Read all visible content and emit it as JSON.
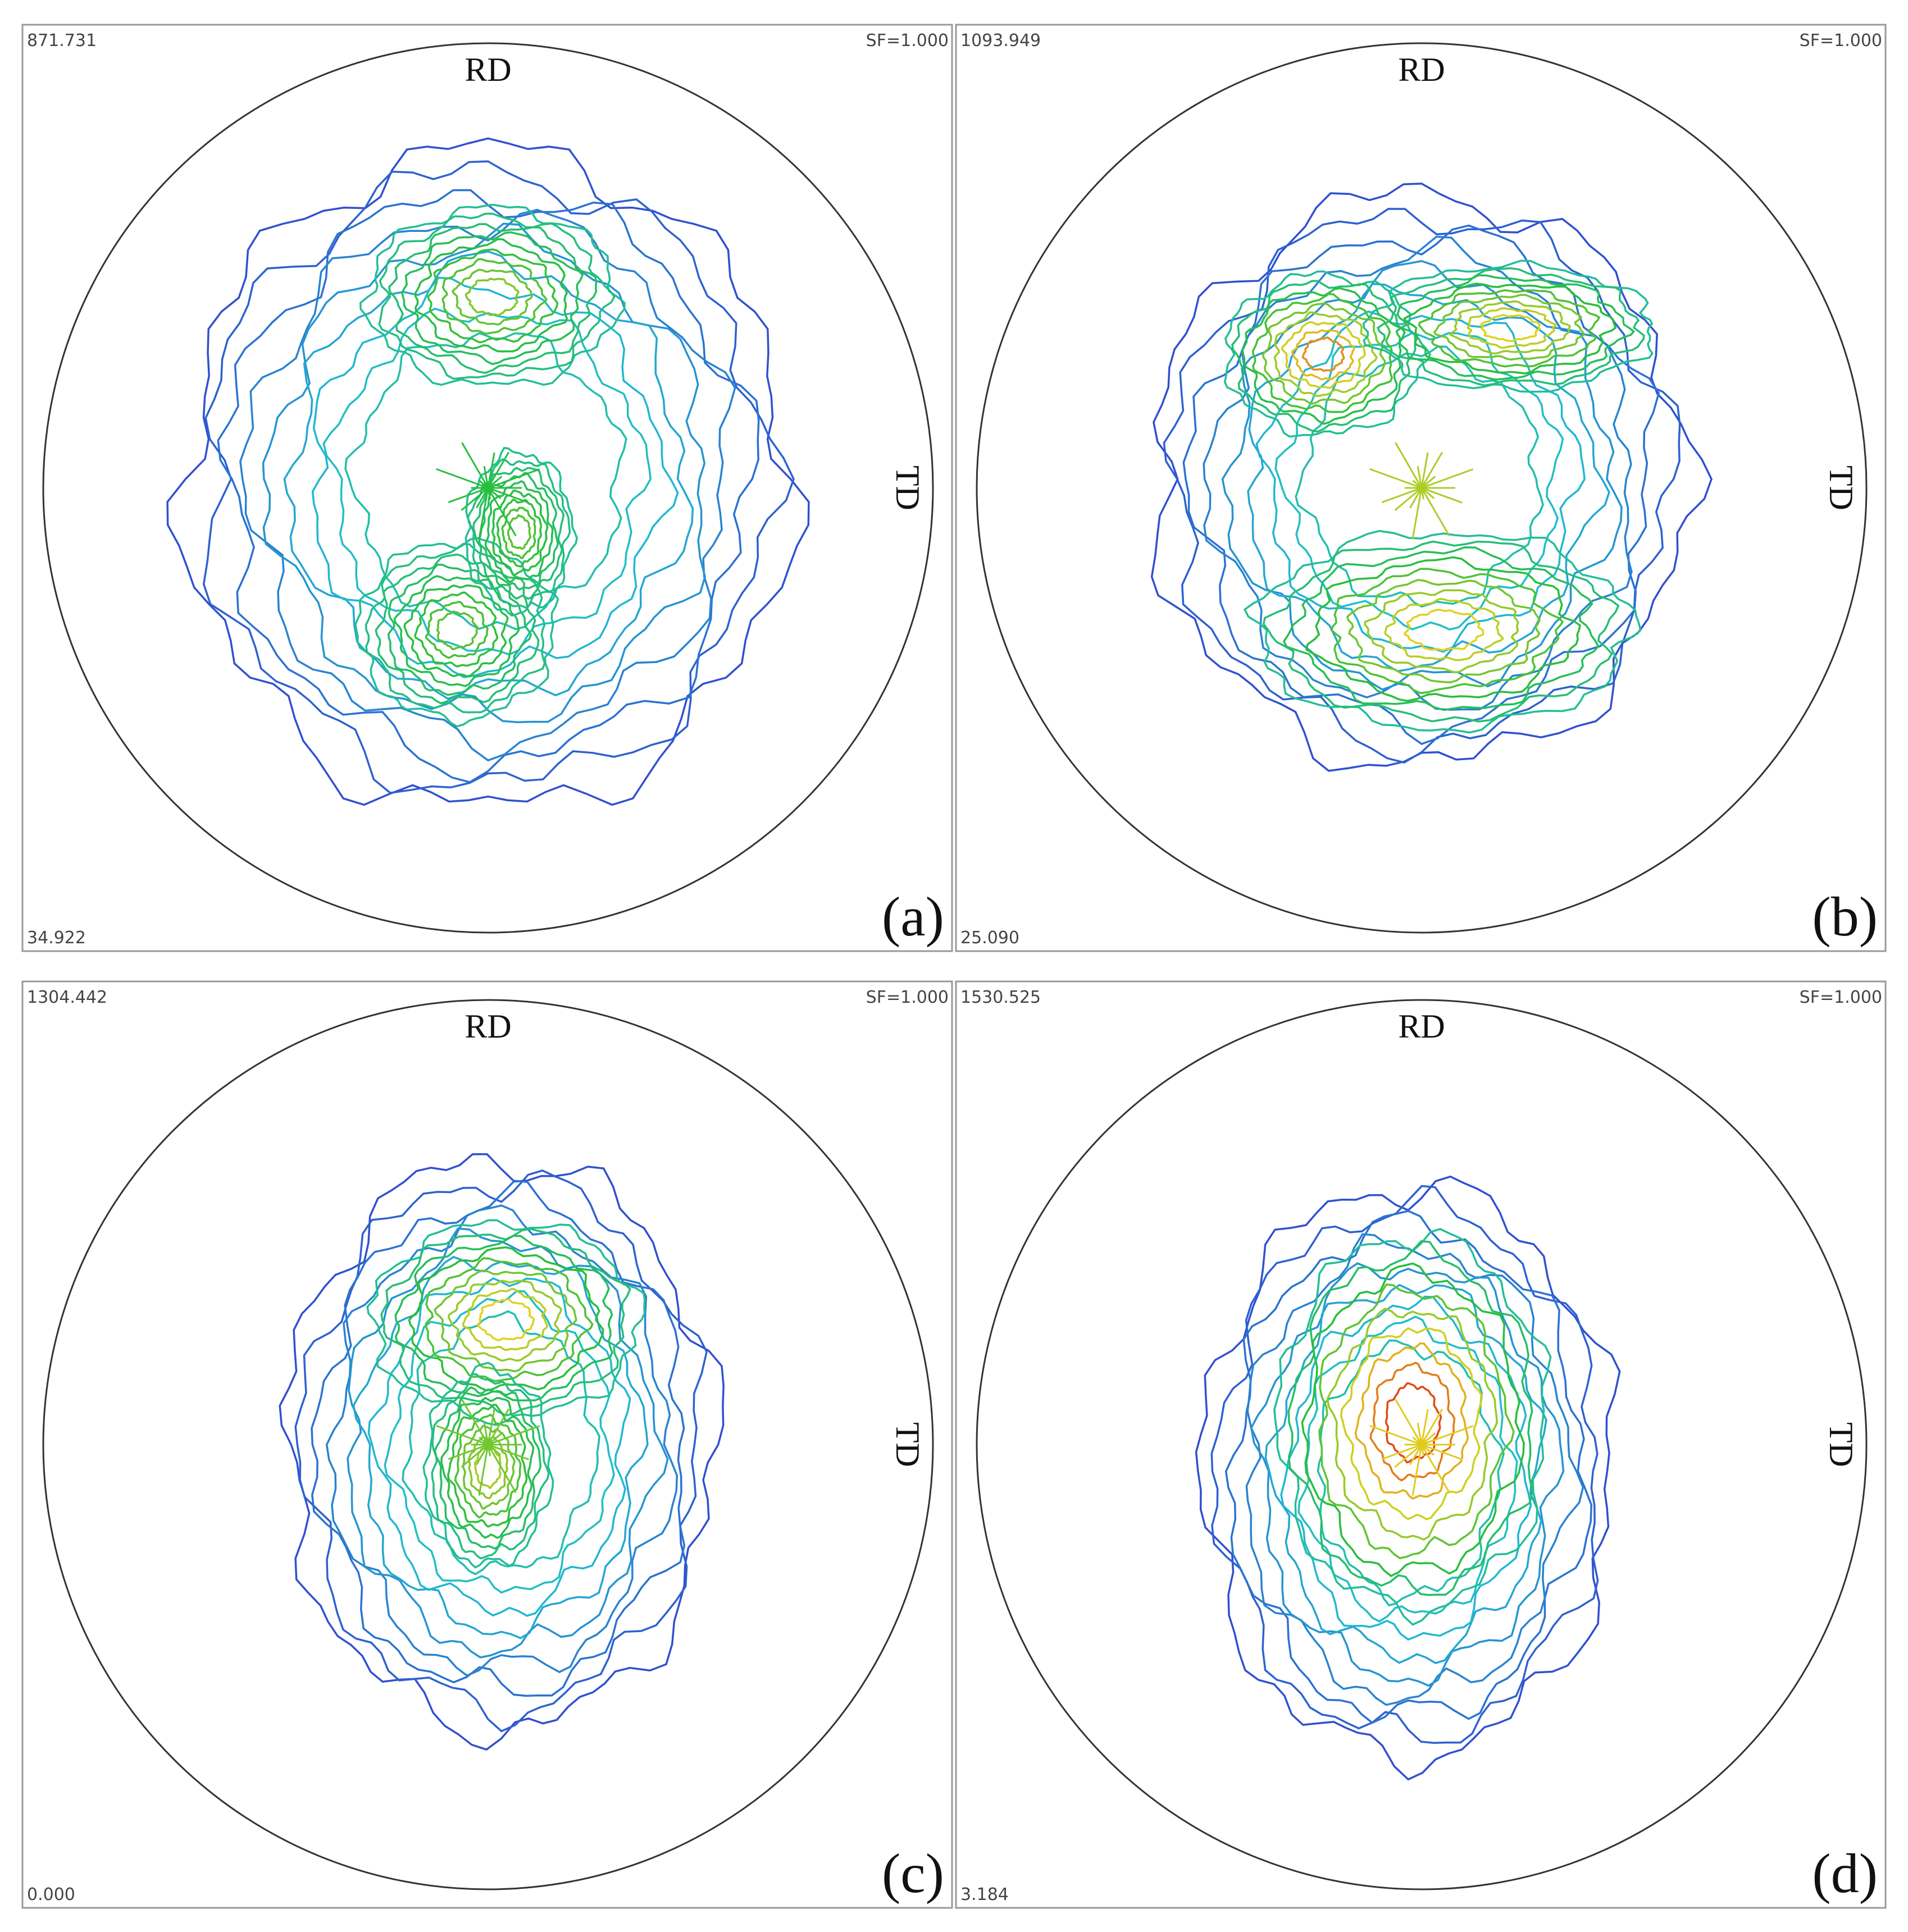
{
  "panels": [
    {
      "label": "(a)",
      "max": "871.731",
      "min": "34.922",
      "scale_factor": "SF=1.000",
      "rd": "RD",
      "td": "TD"
    },
    {
      "label": "(b)",
      "max": "1093.949",
      "min": "25.090",
      "scale_factor": "SF=1.000",
      "rd": "RD",
      "td": "TD"
    },
    {
      "label": "(c)",
      "max": "1304.442",
      "min": "0.000",
      "scale_factor": "SF=1.000",
      "rd": "RD",
      "td": "TD"
    },
    {
      "label": "(d)",
      "max": "1530.525",
      "min": "3.184",
      "scale_factor": "SF=1.000",
      "rd": "RD",
      "td": "TD"
    }
  ]
}
